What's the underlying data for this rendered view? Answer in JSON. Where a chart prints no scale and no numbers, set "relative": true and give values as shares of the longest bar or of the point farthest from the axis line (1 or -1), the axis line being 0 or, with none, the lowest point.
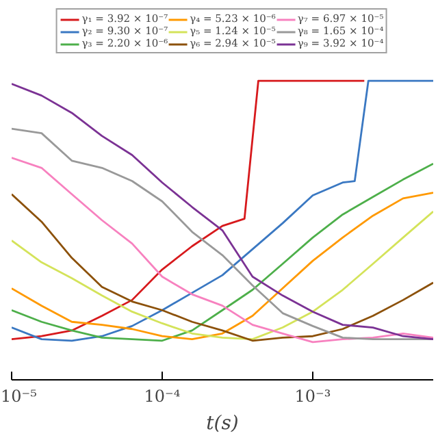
{
  "chart_data": {
    "type": "line",
    "relative": true,
    "xlabel": "t(s)",
    "log": "x",
    "grid": false,
    "legend": "top",
    "marker": "none",
    "line_style": "solid",
    "xlim": [
      1e-05,
      0.00631
    ],
    "xticks": [
      {
        "value": 1e-05,
        "label": "10⁻⁵"
      },
      {
        "value": 0.0001,
        "label": "10⁻⁴"
      },
      {
        "value": 0.001,
        "label": "10⁻³"
      }
    ],
    "x": [
      1e-05,
      1.58e-05,
      2.51e-05,
      3.98e-05,
      6.31e-05,
      0.0001,
      0.000158,
      0.000251,
      0.000398,
      0.000631,
      0.001,
      0.00158,
      0.00251,
      0.00398,
      0.00631
    ],
    "series": [
      {
        "name": "γ₁ = 3.92 × 10⁻⁷",
        "color": "#d7191c",
        "x": [
          1e-05,
          1.58e-05,
          2.51e-05,
          3.98e-05,
          6.31e-05,
          0.0001,
          0.000158,
          0.000251,
          0.000352,
          0.000435,
          0.001,
          0.0022
        ],
        "values": [
          0.136,
          0.146,
          0.165,
          0.214,
          0.267,
          0.369,
          0.447,
          0.515,
          0.539,
          1,
          1,
          1
        ]
      },
      {
        "name": "γ₂ = 9.30 × 10⁻⁷",
        "color": "#3a78c2",
        "x": [
          1e-05,
          1.58e-05,
          2.51e-05,
          3.98e-05,
          6.31e-05,
          0.0001,
          0.000158,
          0.000251,
          0.000398,
          0.000631,
          0.001,
          0.00158,
          0.0019,
          0.00234,
          0.00398,
          0.00631
        ],
        "values": [
          0.175,
          0.136,
          0.131,
          0.146,
          0.18,
          0.233,
          0.291,
          0.35,
          0.437,
          0.524,
          0.617,
          0.66,
          0.665,
          1,
          1,
          1
        ]
      },
      {
        "name": "γ₃ = 2.20 × 10⁻⁶",
        "color": "#4daf4a",
        "values": [
          0.233,
          0.194,
          0.165,
          0.141,
          0.136,
          0.131,
          0.165,
          0.233,
          0.301,
          0.388,
          0.476,
          0.553,
          0.612,
          0.67,
          0.723
        ]
      },
      {
        "name": "γ₄ = 5.23 × 10⁻⁶",
        "color": "#ff9900",
        "values": [
          0.306,
          0.248,
          0.194,
          0.184,
          0.17,
          0.146,
          0.136,
          0.155,
          0.214,
          0.306,
          0.398,
          0.476,
          0.549,
          0.607,
          0.626
        ]
      },
      {
        "name": "γ₅ = 1.24 × 10⁻⁵",
        "color": "#d4e35a",
        "values": [
          0.466,
          0.393,
          0.34,
          0.282,
          0.228,
          0.189,
          0.155,
          0.141,
          0.136,
          0.175,
          0.228,
          0.301,
          0.388,
          0.476,
          0.563
        ]
      },
      {
        "name": "γ₆ = 2.94 × 10⁻⁵",
        "color": "#8c510a",
        "values": [
          0.621,
          0.529,
          0.408,
          0.311,
          0.262,
          0.233,
          0.194,
          0.165,
          0.131,
          0.141,
          0.146,
          0.17,
          0.214,
          0.267,
          0.325
        ]
      },
      {
        "name": "γ₇ = 6.97 × 10⁻⁵",
        "color": "#f781bf",
        "values": [
          0.743,
          0.709,
          0.621,
          0.534,
          0.456,
          0.345,
          0.286,
          0.248,
          0.184,
          0.155,
          0.126,
          0.136,
          0.141,
          0.155,
          0.141
        ]
      },
      {
        "name": "γ₈ = 1.65 × 10⁻⁴",
        "color": "#999999",
        "values": [
          0.84,
          0.825,
          0.733,
          0.709,
          0.665,
          0.597,
          0.495,
          0.417,
          0.316,
          0.223,
          0.18,
          0.141,
          0.136,
          0.136,
          0.136
        ]
      },
      {
        "name": "γ₉ = 3.92 × 10⁻⁴",
        "color": "#7b3294",
        "values": [
          0.99,
          0.951,
          0.893,
          0.816,
          0.752,
          0.66,
          0.578,
          0.5,
          0.345,
          0.282,
          0.228,
          0.184,
          0.175,
          0.146,
          0.136
        ]
      }
    ]
  }
}
